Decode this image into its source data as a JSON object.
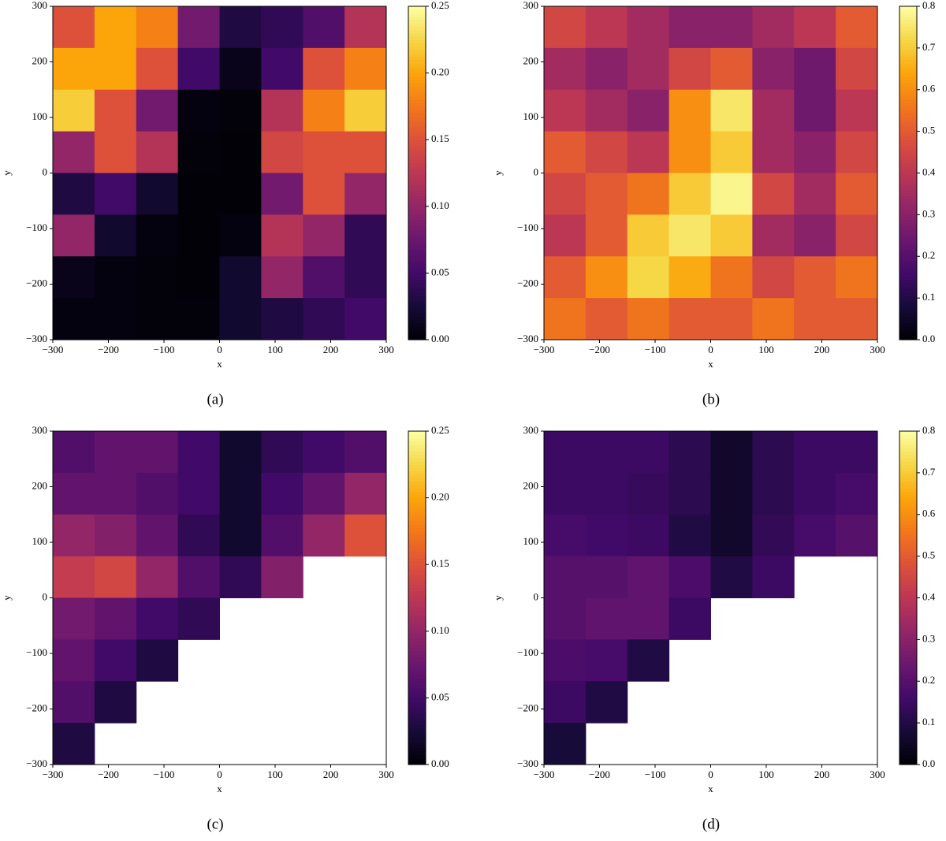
{
  "chart_data": [
    {
      "type": "heatmap",
      "caption": "(a)",
      "x_label": "x",
      "y_label": "y",
      "colormap": "inferno",
      "xlim": [
        -300,
        300
      ],
      "ylim": [
        -300,
        300
      ],
      "xticks": [
        {
          "value": -300,
          "label": "−300"
        },
        {
          "value": -200,
          "label": "−200"
        },
        {
          "value": -100,
          "label": "−100"
        },
        0,
        100,
        200,
        300
      ],
      "yticks": [
        {
          "value": -300,
          "label": "−300"
        },
        {
          "value": -200,
          "label": "−200"
        },
        {
          "value": -100,
          "label": "−100"
        },
        0,
        100,
        200,
        300
      ],
      "zlim": [
        0,
        0.25
      ],
      "zticks": [
        {
          "value": 0,
          "label": "0.00"
        },
        0.05,
        {
          "value": 0.1,
          "label": "0.10"
        },
        0.15,
        {
          "value": 0.2,
          "label": "0.20"
        },
        0.25
      ],
      "z": [
        [
          0.15,
          0.2,
          0.18,
          0.08,
          0.03,
          0.04,
          0.06,
          0.12
        ],
        [
          0.2,
          0.2,
          0.15,
          0.05,
          0.01,
          0.05,
          0.15,
          0.18
        ],
        [
          0.22,
          0.15,
          0.08,
          0.005,
          0.003,
          0.12,
          0.18,
          0.22
        ],
        [
          0.1,
          0.15,
          0.12,
          0.003,
          0.002,
          0.14,
          0.15,
          0.15
        ],
        [
          0.03,
          0.05,
          0.02,
          0.002,
          0.002,
          0.08,
          0.15,
          0.1
        ],
        [
          0.1,
          0.02,
          0.005,
          0.002,
          0.005,
          0.12,
          0.1,
          0.04
        ],
        [
          0.01,
          0.005,
          0.003,
          0.002,
          0.02,
          0.1,
          0.06,
          0.04
        ],
        [
          0.005,
          0.005,
          0.003,
          0.003,
          0.02,
          0.03,
          0.04,
          0.05
        ]
      ]
    },
    {
      "type": "heatmap",
      "caption": "(b)",
      "x_label": "x",
      "y_label": "y",
      "colormap": "inferno",
      "xlim": [
        -300,
        300
      ],
      "ylim": [
        -300,
        300
      ],
      "xticks": [
        {
          "value": -300,
          "label": "−300"
        },
        {
          "value": -200,
          "label": "−200"
        },
        {
          "value": -100,
          "label": "−100"
        },
        0,
        100,
        200,
        300
      ],
      "yticks": [
        {
          "value": -300,
          "label": "−300"
        },
        {
          "value": -200,
          "label": "−200"
        },
        {
          "value": -100,
          "label": "−100"
        },
        0,
        100,
        200,
        300
      ],
      "zlim": [
        0,
        0.8
      ],
      "zticks": [
        {
          "value": 0,
          "label": "0.0"
        },
        0.1,
        0.2,
        0.3,
        0.4,
        0.5,
        0.6,
        0.7,
        0.8
      ],
      "z": [
        [
          0.45,
          0.4,
          0.35,
          0.3,
          0.3,
          0.35,
          0.4,
          0.5
        ],
        [
          0.35,
          0.3,
          0.35,
          0.45,
          0.5,
          0.3,
          0.25,
          0.45
        ],
        [
          0.4,
          0.35,
          0.3,
          0.6,
          0.75,
          0.35,
          0.25,
          0.4
        ],
        [
          0.5,
          0.45,
          0.4,
          0.6,
          0.7,
          0.35,
          0.3,
          0.45
        ],
        [
          0.45,
          0.5,
          0.55,
          0.7,
          0.78,
          0.45,
          0.35,
          0.5
        ],
        [
          0.4,
          0.5,
          0.7,
          0.75,
          0.7,
          0.35,
          0.3,
          0.45
        ],
        [
          0.5,
          0.6,
          0.72,
          0.65,
          0.55,
          0.45,
          0.5,
          0.55
        ],
        [
          0.55,
          0.5,
          0.55,
          0.5,
          0.5,
          0.55,
          0.5,
          0.5
        ]
      ]
    },
    {
      "type": "heatmap",
      "caption": "(c)",
      "x_label": "x",
      "y_label": "y",
      "colormap": "inferno",
      "xlim": [
        -300,
        300
      ],
      "ylim": [
        -300,
        300
      ],
      "xticks": [
        {
          "value": -300,
          "label": "−300"
        },
        {
          "value": -200,
          "label": "−200"
        },
        {
          "value": -100,
          "label": "−100"
        },
        0,
        100,
        200,
        300
      ],
      "yticks": [
        {
          "value": -300,
          "label": "−300"
        },
        {
          "value": -200,
          "label": "−200"
        },
        {
          "value": -100,
          "label": "−100"
        },
        0,
        100,
        200,
        300
      ],
      "zlim": [
        0,
        0.25
      ],
      "zticks": [
        {
          "value": 0,
          "label": "0.00"
        },
        0.05,
        {
          "value": 0.1,
          "label": "0.10"
        },
        0.15,
        {
          "value": 0.2,
          "label": "0.20"
        },
        0.25
      ],
      "z": [
        [
          0.06,
          0.07,
          0.07,
          0.05,
          0.02,
          0.04,
          0.05,
          0.06
        ],
        [
          0.07,
          0.07,
          0.06,
          0.05,
          0.02,
          0.05,
          0.07,
          0.1
        ],
        [
          0.1,
          0.09,
          0.07,
          0.04,
          0.02,
          0.06,
          0.1,
          0.15
        ],
        [
          0.13,
          0.14,
          0.1,
          0.06,
          0.04,
          0.09,
          null,
          null
        ],
        [
          0.08,
          0.07,
          0.05,
          0.04,
          null,
          null,
          null,
          null
        ],
        [
          0.07,
          0.05,
          0.03,
          null,
          null,
          null,
          null,
          null
        ],
        [
          0.06,
          0.03,
          null,
          null,
          null,
          null,
          null,
          null
        ],
        [
          0.03,
          null,
          null,
          null,
          null,
          null,
          null,
          null
        ]
      ]
    },
    {
      "type": "heatmap",
      "caption": "(d)",
      "x_label": "x",
      "y_label": "y",
      "colormap": "inferno",
      "xlim": [
        -300,
        300
      ],
      "ylim": [
        -300,
        300
      ],
      "xticks": [
        {
          "value": -300,
          "label": "−300"
        },
        {
          "value": -200,
          "label": "−200"
        },
        {
          "value": -100,
          "label": "−100"
        },
        0,
        100,
        200,
        300
      ],
      "yticks": [
        {
          "value": -300,
          "label": "−300"
        },
        {
          "value": -200,
          "label": "−200"
        },
        {
          "value": -100,
          "label": "−100"
        },
        0,
        100,
        200,
        300
      ],
      "zlim": [
        0,
        0.8
      ],
      "zticks": [
        {
          "value": 0,
          "label": "0.0"
        },
        0.1,
        0.2,
        0.3,
        0.4,
        0.5,
        0.6,
        0.7,
        0.8
      ],
      "z": [
        [
          0.15,
          0.15,
          0.15,
          0.12,
          0.06,
          0.12,
          0.15,
          0.15
        ],
        [
          0.15,
          0.15,
          0.14,
          0.12,
          0.06,
          0.12,
          0.15,
          0.17
        ],
        [
          0.17,
          0.16,
          0.15,
          0.1,
          0.06,
          0.13,
          0.17,
          0.2
        ],
        [
          0.2,
          0.2,
          0.22,
          0.18,
          0.1,
          0.15,
          null,
          null
        ],
        [
          0.2,
          0.22,
          0.22,
          0.15,
          null,
          null,
          null,
          null
        ],
        [
          0.18,
          0.17,
          0.1,
          null,
          null,
          null,
          null,
          null
        ],
        [
          0.15,
          0.1,
          null,
          null,
          null,
          null,
          null,
          null
        ],
        [
          0.08,
          null,
          null,
          null,
          null,
          null,
          null,
          null
        ]
      ]
    }
  ]
}
